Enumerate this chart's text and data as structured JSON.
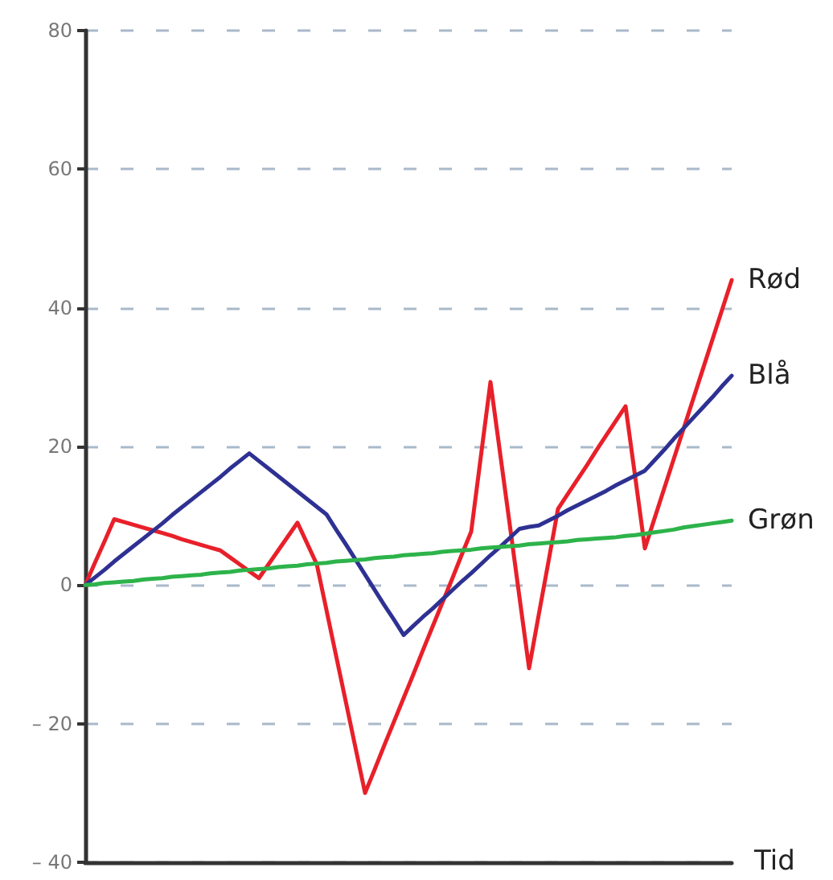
{
  "chart_data": {
    "type": "line",
    "xlabel": "Tid",
    "categories": [
      null,
      null,
      null,
      null,
      null,
      null,
      null,
      null,
      null,
      null,
      null,
      null,
      null,
      null,
      null,
      null,
      null,
      null,
      null,
      null,
      null,
      null,
      null,
      null,
      null,
      null,
      null,
      null,
      null,
      null,
      null,
      null,
      null,
      null,
      null,
      null,
      null,
      null,
      null,
      null,
      null,
      null,
      null,
      null,
      null,
      null,
      null,
      null,
      null,
      null,
      null,
      null,
      null,
      null,
      null,
      null,
      null,
      null,
      null,
      null,
      null,
      null,
      null,
      null,
      null,
      null,
      null,
      null
    ],
    "series": [
      {
        "name": "Rød",
        "color": "#e8202a",
        "values": [
          0,
          3.2,
          6.3,
          9.5,
          9.1,
          8.7,
          8.3,
          7.9,
          7.5,
          7.1,
          6.6,
          6.2,
          5.8,
          5.4,
          5,
          4,
          3,
          2,
          1,
          3,
          5,
          7,
          9,
          6,
          3,
          -3.6,
          -10.2,
          -16.8,
          -23.4,
          -30,
          -26.6,
          -23.1,
          -19.7,
          -16.3,
          -12.9,
          -9.4,
          -6,
          -2.6,
          0.8,
          4.3,
          7.7,
          18.5,
          29.3,
          19,
          8.7,
          -1.7,
          -12,
          -4.3,
          3.3,
          11,
          13.1,
          15.2,
          17.3,
          19.5,
          21.6,
          23.7,
          25.8,
          15.6,
          5.3,
          9.6,
          13.9,
          18.2,
          22.5,
          26.8,
          31.1,
          35.4,
          39.7,
          44
        ]
      },
      {
        "name": "Blå",
        "color": "#2e3192",
        "values": [
          0,
          1.1,
          2.2,
          3.4,
          4.5,
          5.6,
          6.7,
          7.8,
          8.9,
          10.1,
          11.2,
          12.3,
          13.4,
          14.5,
          15.6,
          16.8,
          17.9,
          19,
          17.9,
          16.8,
          15.7,
          14.6,
          13.5,
          12.4,
          11.3,
          10.2,
          8,
          5.9,
          3.7,
          1.5,
          -0.7,
          -2.9,
          -5,
          -7.2,
          -5.9,
          -4.6,
          -3.4,
          -2.1,
          -0.8,
          0.5,
          1.7,
          3,
          4.3,
          5.5,
          6.8,
          8.1,
          8.4,
          8.6,
          9.3,
          10,
          10.8,
          11.5,
          12.2,
          12.9,
          13.6,
          14.4,
          15.1,
          15.8,
          16.5,
          18,
          19.5,
          21.1,
          22.6,
          24.1,
          25.6,
          27.1,
          28.7,
          30.2
        ]
      },
      {
        "name": "Grøn",
        "color": "#2db34a",
        "values": [
          0,
          0.1,
          0.3,
          0.4,
          0.5,
          0.6,
          0.8,
          0.9,
          1,
          1.2,
          1.3,
          1.4,
          1.5,
          1.7,
          1.8,
          1.9,
          2.1,
          2.2,
          2.3,
          2.4,
          2.6,
          2.7,
          2.8,
          3,
          3.1,
          3.2,
          3.4,
          3.5,
          3.6,
          3.7,
          3.9,
          4,
          4.1,
          4.3,
          4.4,
          4.5,
          4.6,
          4.8,
          4.9,
          5,
          5.1,
          5.3,
          5.4,
          5.5,
          5.6,
          5.7,
          5.9,
          6,
          6.1,
          6.2,
          6.3,
          6.5,
          6.6,
          6.7,
          6.8,
          6.9,
          7.1,
          7.2,
          7.4,
          7.6,
          7.8,
          8,
          8.3,
          8.5,
          8.7,
          8.9,
          9.1,
          9.3
        ]
      }
    ],
    "ylim": [
      -40,
      80
    ],
    "yticks": [
      {
        "value": -40,
        "label": "– 40"
      },
      {
        "value": -20,
        "label": "– 20"
      },
      0,
      20,
      40,
      60,
      80
    ],
    "grid": "y",
    "legend": false,
    "marker": "none",
    "line_style": "solid",
    "tick_labels": "y"
  }
}
